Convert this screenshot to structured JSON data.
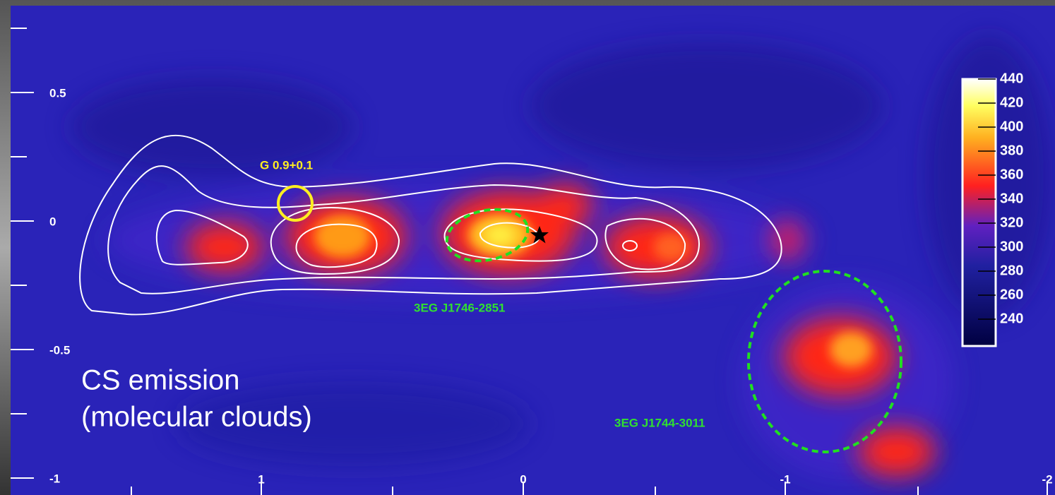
{
  "x_axis": {
    "ticks": [
      1,
      0,
      -1,
      -2
    ]
  },
  "y_axis": {
    "ticks": [
      0.5,
      0,
      -0.5,
      -1
    ]
  },
  "colorbar": {
    "ticks": [
      440,
      420,
      400,
      380,
      360,
      340,
      320,
      300,
      280,
      260,
      240
    ]
  },
  "labels": {
    "snr": "G 0.9+0.1",
    "source_center": "3EG J1746-2851",
    "source_right": "3EG J1744-3011",
    "caption_line1": "CS emission",
    "caption_line2": "(molecular clouds)"
  }
}
